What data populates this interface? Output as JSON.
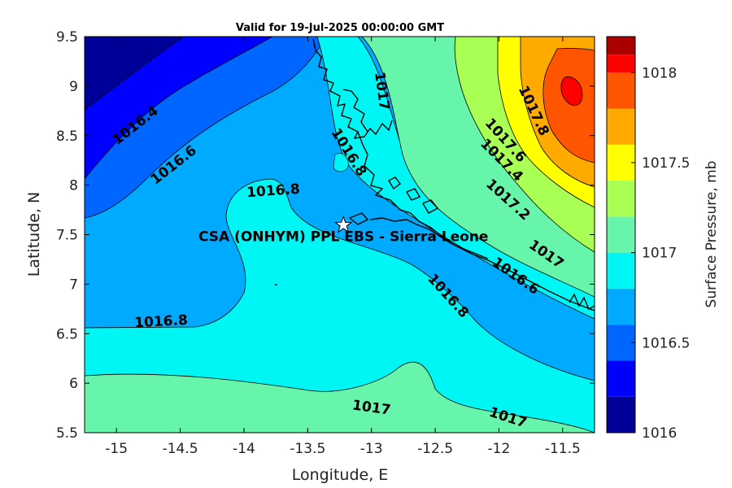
{
  "title": "Valid for 19-Jul-2025 00:00:00 GMT",
  "x_axis": {
    "label": "Longitude, E",
    "range": [
      -15.25,
      -11.25
    ],
    "ticks": [
      "-15",
      "-14.5",
      "-14",
      "-13.5",
      "-13",
      "-12.5",
      "-12",
      "-11.5"
    ]
  },
  "y_axis": {
    "label": "Latitude, N",
    "range": [
      5.5,
      9.5
    ],
    "ticks": [
      "5.5",
      "6",
      "6.5",
      "7",
      "7.5",
      "8",
      "8.5",
      "9",
      "9.5"
    ]
  },
  "colorbar": {
    "label": "Surface Pressure, mb",
    "range": [
      1016.0,
      1018.2
    ],
    "tick_labels": [
      "1016",
      "1016.5",
      "1017",
      "1017.5",
      "1018"
    ],
    "tick_values": [
      1016.0,
      1016.5,
      1017.0,
      1017.5,
      1018.0
    ],
    "levels": [
      {
        "from": 1016.0,
        "color": "#000099"
      },
      {
        "from": 1016.2,
        "color": "#0000ff"
      },
      {
        "from": 1016.4,
        "color": "#0066ff"
      },
      {
        "from": 1016.6,
        "color": "#00aaff"
      },
      {
        "from": 1016.8,
        "color": "#00f5f5"
      },
      {
        "from": 1017.0,
        "color": "#66f5aa"
      },
      {
        "from": 1017.2,
        "color": "#aaff55"
      },
      {
        "from": 1017.4,
        "color": "#ffff00"
      },
      {
        "from": 1017.6,
        "color": "#ffaa00"
      },
      {
        "from": 1017.8,
        "color": "#ff5500"
      },
      {
        "from": 1018.0,
        "color": "#ff0000"
      },
      {
        "from": 1018.1,
        "color": "#aa0000"
      }
    ]
  },
  "contour_labels": [
    {
      "text": "1016.4",
      "lon": -14.85,
      "lat": 8.6,
      "angle": -38
    },
    {
      "text": "1016.6",
      "lon": -14.55,
      "lat": 8.2,
      "angle": -38
    },
    {
      "text": "1016.8",
      "lon": -13.77,
      "lat": 7.94,
      "angle": -4
    },
    {
      "text": "1016.8",
      "lon": -14.65,
      "lat": 6.62,
      "angle": -3
    },
    {
      "text": "1017",
      "lon": -13.0,
      "lat": 5.75,
      "angle": 8
    },
    {
      "text": "1017",
      "lon": -11.93,
      "lat": 5.65,
      "angle": 18
    },
    {
      "text": "1017",
      "lon": -12.92,
      "lat": 8.95,
      "angle": 82
    },
    {
      "text": "1016.8",
      "lon": -13.18,
      "lat": 8.33,
      "angle": 58
    },
    {
      "text": "1016.8",
      "lon": -12.4,
      "lat": 6.88,
      "angle": 48
    },
    {
      "text": "1016.6",
      "lon": -11.87,
      "lat": 7.08,
      "angle": 35
    },
    {
      "text": "1017",
      "lon": -11.63,
      "lat": 7.3,
      "angle": 35
    },
    {
      "text": "1017.2",
      "lon": -11.93,
      "lat": 7.85,
      "angle": 42
    },
    {
      "text": "1017.4",
      "lon": -11.98,
      "lat": 8.25,
      "angle": 45
    },
    {
      "text": "1017.6",
      "lon": -11.95,
      "lat": 8.45,
      "angle": 48
    },
    {
      "text": "1017.8",
      "lon": -11.73,
      "lat": 8.75,
      "angle": 65
    }
  ],
  "site": {
    "name": "CSA (ONHYM) PPL EBS  - Sierra Leone",
    "lon": -13.22,
    "lat": 7.6
  }
}
